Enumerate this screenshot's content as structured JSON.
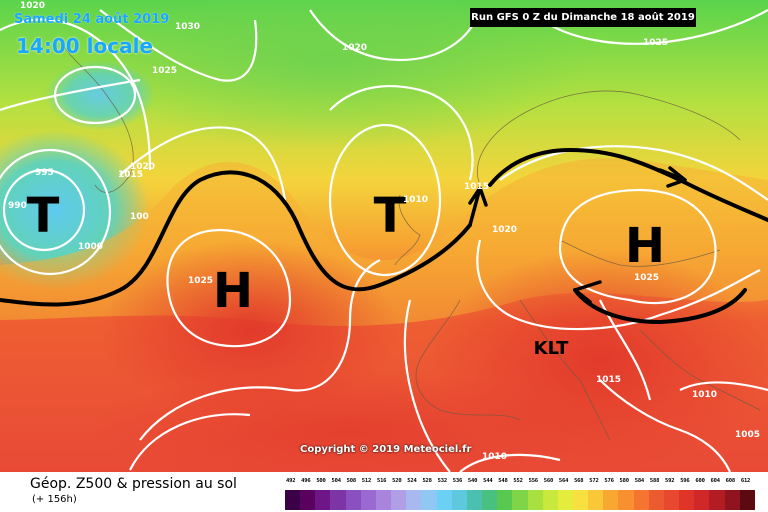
{
  "header": {
    "date": "Samedi 24 août 2019",
    "local_time": "14:00 locale",
    "run_info": "Run GFS 0 Z du Dimanche 18 août 2019"
  },
  "map": {
    "pressure_labels": {
      "p1020_nw": "1020",
      "p1030": "1030",
      "p1025_nw": "1025",
      "p1020_n": "1020",
      "p1025_ne": "1025",
      "p995": "995",
      "p990": "990",
      "p1000": "1000",
      "p1020_gr": "1020",
      "p1015_gr": "1015",
      "p100": "100",
      "p1015_uk": "1015",
      "p1010_uk": "1010",
      "p1025_atl": "1025",
      "p1020_eu": "1020",
      "p1025_eu": "1025",
      "p1015_it": "1015",
      "p1010_e": "1010",
      "p1010_s": "1010",
      "p1005": "1005"
    },
    "systems": {
      "low_west": "T",
      "low_uk": "T",
      "high_atlantic": "H",
      "high_europe": "H",
      "klt": "KLT"
    },
    "copyright": "Copyright © 2019 Meteociel.fr"
  },
  "footer": {
    "product_title": "Géop. Z500 & pression au sol",
    "forecast_hour": "(+ 156h)",
    "scale_values": [
      "492",
      "496",
      "500",
      "504",
      "508",
      "512",
      "516",
      "520",
      "524",
      "528",
      "532",
      "536",
      "540",
      "544",
      "548",
      "552",
      "556",
      "560",
      "564",
      "568",
      "572",
      "576",
      "580",
      "584",
      "588",
      "592",
      "596",
      "600",
      "604",
      "608",
      "612"
    ],
    "scale_colors": [
      "#3c0046",
      "#5a005f",
      "#6e1687",
      "#7d35a6",
      "#8a4fc0",
      "#9a6ad2",
      "#a884dc",
      "#b09ee6",
      "#a8b8f0",
      "#90c8f4",
      "#6cd0f4",
      "#5ec8dc",
      "#4cc0b0",
      "#48c080",
      "#58c850",
      "#80d448",
      "#a8e040",
      "#c8e83c",
      "#e4ec3c",
      "#f8e040",
      "#f8c838",
      "#f8a830",
      "#f89030",
      "#f47430",
      "#ec5a30",
      "#e84830",
      "#e03428",
      "#d02828",
      "#b41c24",
      "#901420",
      "#5a0a10"
    ]
  }
}
